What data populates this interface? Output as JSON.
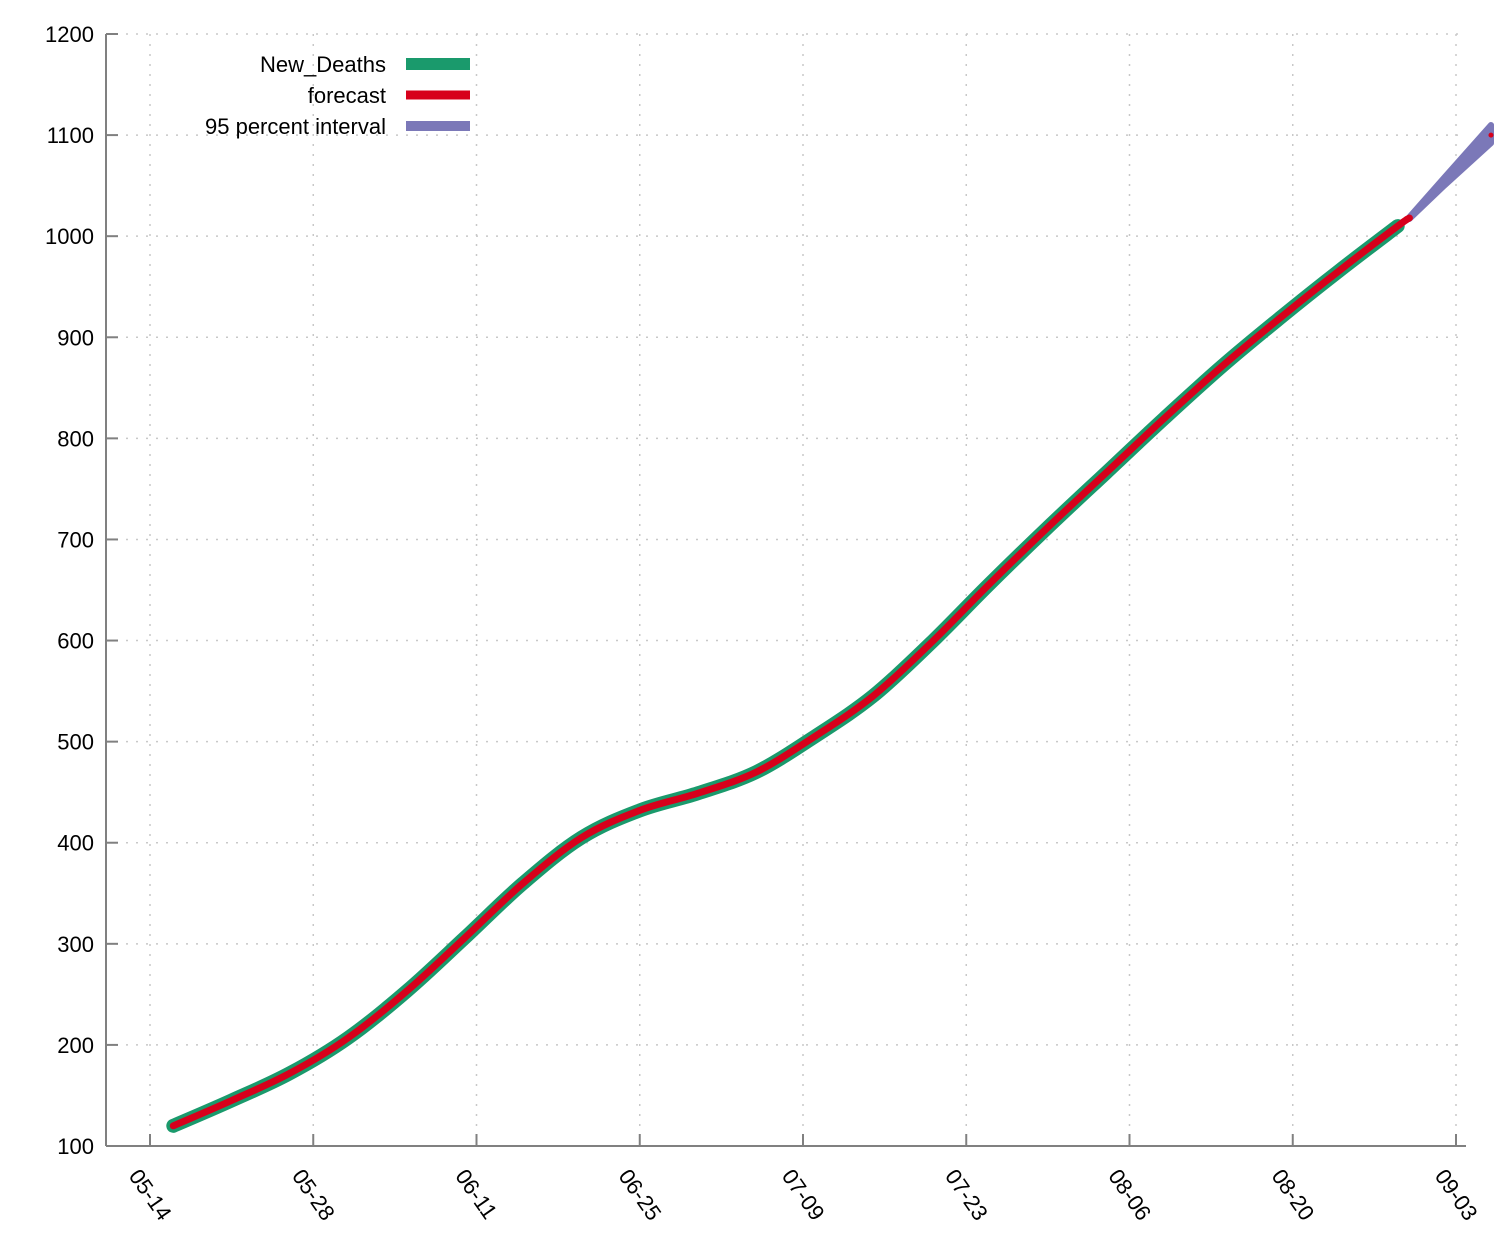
{
  "chart_data": {
    "type": "line",
    "title": "",
    "xlabel": "",
    "ylabel": "",
    "x_ticks": [
      "05-14",
      "05-28",
      "06-11",
      "06-25",
      "07-09",
      "07-23",
      "08-06",
      "08-20",
      "09-03"
    ],
    "y_ticks": [
      100,
      200,
      300,
      400,
      500,
      600,
      700,
      800,
      900,
      1000,
      1100,
      1200
    ],
    "ylim": [
      100,
      1200
    ],
    "xlim": [
      "05-14",
      "09-03"
    ],
    "grid": true,
    "legend_position": "top-left",
    "series": [
      {
        "name": "New_Deaths",
        "color": "#1a9a6c",
        "points": [
          {
            "x": "05-16",
            "y": 120
          },
          {
            "x": "05-21",
            "y": 145
          },
          {
            "x": "05-26",
            "y": 172
          },
          {
            "x": "05-31",
            "y": 207
          },
          {
            "x": "06-05",
            "y": 253
          },
          {
            "x": "06-10",
            "y": 306
          },
          {
            "x": "06-15",
            "y": 360
          },
          {
            "x": "06-20",
            "y": 405
          },
          {
            "x": "06-25",
            "y": 432
          },
          {
            "x": "06-30",
            "y": 449
          },
          {
            "x": "07-05",
            "y": 470
          },
          {
            "x": "07-10",
            "y": 505
          },
          {
            "x": "07-15",
            "y": 545
          },
          {
            "x": "07-20",
            "y": 598
          },
          {
            "x": "07-25",
            "y": 656
          },
          {
            "x": "07-30",
            "y": 712
          },
          {
            "x": "08-04",
            "y": 766
          },
          {
            "x": "08-09",
            "y": 820
          },
          {
            "x": "08-14",
            "y": 872
          },
          {
            "x": "08-19",
            "y": 920
          },
          {
            "x": "08-24",
            "y": 966
          },
          {
            "x": "08-29",
            "y": 1010
          }
        ]
      },
      {
        "name": "forecast",
        "color": "#d7001b",
        "points": [
          {
            "x": "05-16",
            "y": 120
          },
          {
            "x": "05-21",
            "y": 145
          },
          {
            "x": "05-26",
            "y": 172
          },
          {
            "x": "05-31",
            "y": 207
          },
          {
            "x": "06-05",
            "y": 253
          },
          {
            "x": "06-10",
            "y": 306
          },
          {
            "x": "06-15",
            "y": 360
          },
          {
            "x": "06-20",
            "y": 405
          },
          {
            "x": "06-25",
            "y": 432
          },
          {
            "x": "06-30",
            "y": 449
          },
          {
            "x": "07-05",
            "y": 470
          },
          {
            "x": "07-10",
            "y": 505
          },
          {
            "x": "07-15",
            "y": 545
          },
          {
            "x": "07-20",
            "y": 598
          },
          {
            "x": "07-25",
            "y": 656
          },
          {
            "x": "07-30",
            "y": 712
          },
          {
            "x": "08-04",
            "y": 766
          },
          {
            "x": "08-09",
            "y": 820
          },
          {
            "x": "08-14",
            "y": 872
          },
          {
            "x": "08-19",
            "y": 920
          },
          {
            "x": "08-24",
            "y": 966
          },
          {
            "x": "08-29",
            "y": 1010
          },
          {
            "x": "08-30",
            "y": 1018
          },
          {
            "x": "09-06",
            "y": 1100
          }
        ]
      },
      {
        "name": "95 percent interval",
        "color": "#7b78b8",
        "upper": [
          {
            "x": "08-30",
            "y": 1019
          },
          {
            "x": "09-02",
            "y": 1058
          },
          {
            "x": "09-06",
            "y": 1110
          }
        ],
        "lower": [
          {
            "x": "08-30",
            "y": 1017
          },
          {
            "x": "09-02",
            "y": 1050
          },
          {
            "x": "09-06",
            "y": 1092
          }
        ]
      }
    ]
  }
}
